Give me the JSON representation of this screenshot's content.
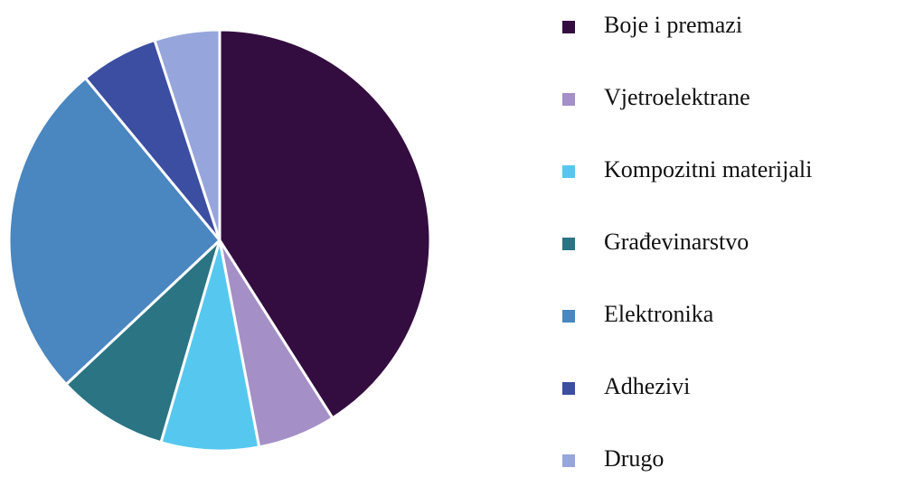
{
  "chart_data": {
    "type": "pie",
    "categories": [
      "Boje i premazi",
      "Vjetroelektrane",
      "Kompozitni materijali",
      "Građevinarstvo",
      "Elektronika",
      "Adhezivi",
      "Drugo"
    ],
    "values": [
      41,
      6,
      7.5,
      8.5,
      26,
      6,
      5
    ],
    "colors": [
      "#330d40",
      "#a58fc7",
      "#56c8ef",
      "#2a7483",
      "#4a86c0",
      "#3b4ea1",
      "#96a6dc"
    ],
    "legend": "right"
  }
}
